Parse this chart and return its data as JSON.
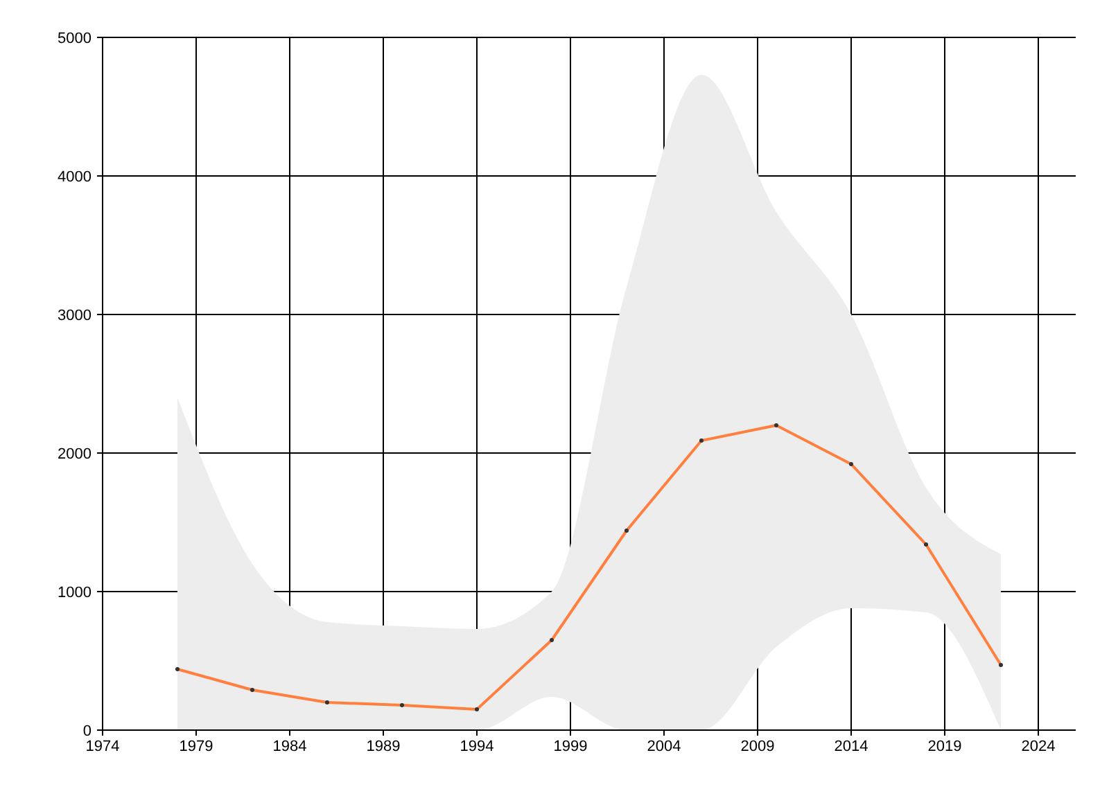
{
  "chart_data": {
    "type": "line",
    "x": [
      1978,
      1982,
      1986,
      1990,
      1994,
      1998,
      2002,
      2006,
      2010,
      2014,
      2018,
      2022
    ],
    "series": [
      {
        "color": "#ff7f3f",
        "values": [
          440,
          290,
          200,
          180,
          150,
          650,
          1440,
          2090,
          2200,
          1920,
          1340,
          470
        ],
        "lower": [
          0,
          0,
          0,
          0,
          0,
          240,
          0,
          0,
          600,
          880,
          850,
          0
        ],
        "upper": [
          2400,
          1200,
          780,
          750,
          730,
          1000,
          3200,
          4730,
          3740,
          3000,
          1750,
          1270
        ]
      }
    ],
    "xlim": [
      1974,
      2026
    ],
    "xticks": [
      1974,
      1979,
      1984,
      1989,
      1994,
      1999,
      2004,
      2009,
      2014,
      2019,
      2024
    ],
    "ylim": [
      0,
      5000
    ],
    "yticks": [
      0,
      1000,
      2000,
      3000,
      4000,
      5000
    ],
    "grid": true,
    "marker": "circle",
    "line_style": "solid"
  }
}
